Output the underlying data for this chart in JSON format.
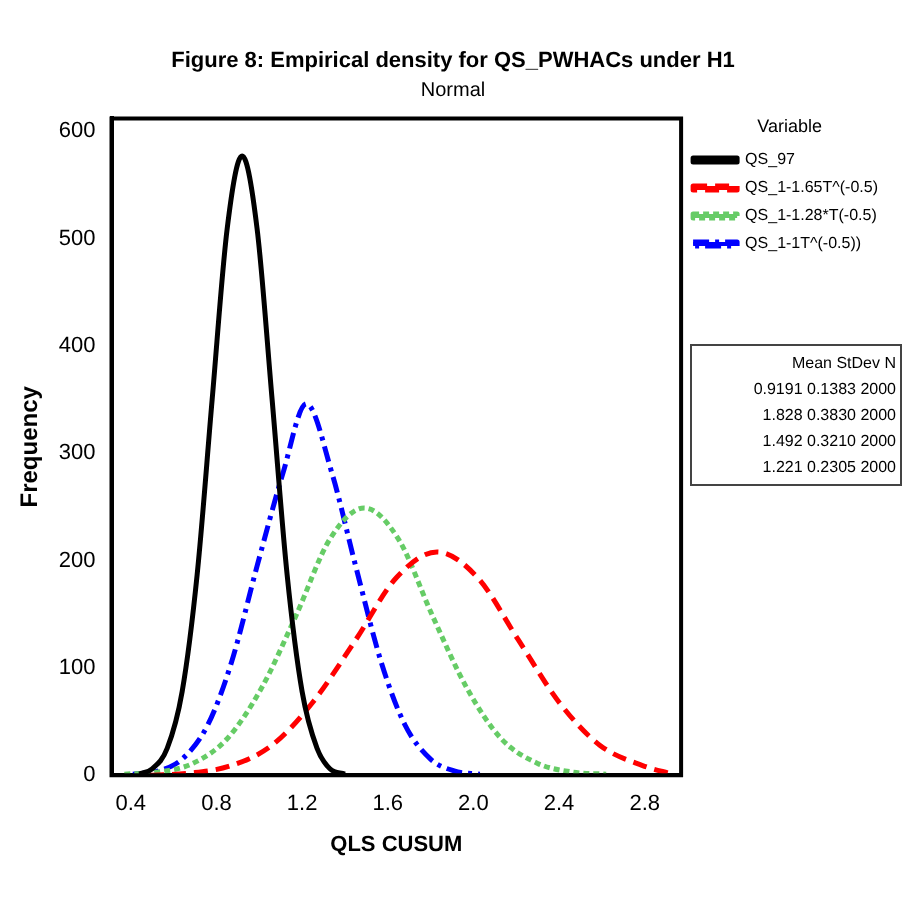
{
  "chart_data": {
    "type": "line",
    "title": "Figure 8: Empirical density for QS_PWHACs under H1",
    "subtitle": "Normal",
    "xlabel": "QLS CUSUM",
    "ylabel": "Frequency",
    "legend_title": "Variable",
    "legend": "right",
    "grid": false,
    "marker": "none",
    "xlim": [
      0.31,
      2.97
    ],
    "ylim": [
      0,
      612
    ],
    "xticks": [
      0.4,
      0.8,
      1.2,
      1.6,
      {
        "value": 2,
        "label": "2.0"
      },
      2.4,
      2.8
    ],
    "yticks": [
      0,
      100,
      200,
      300,
      400,
      500,
      600
    ],
    "series": [
      {
        "name": "QS_97",
        "color": "#000000",
        "line_style": "solid",
        "x": [
          0.44,
          0.5,
          0.57,
          0.64,
          0.71,
          0.78,
          0.85,
          0.92,
          0.99,
          1.06,
          1.13,
          1.2,
          1.27,
          1.33,
          1.4
        ],
        "values": [
          1,
          6,
          25,
          78,
          187,
          350,
          509,
          577,
          509,
          350,
          187,
          78,
          25,
          6,
          1
        ]
      },
      {
        "name": "QS_1-1.65T^(-0.5)",
        "color": "#ff0000",
        "line_style": "dashed",
        "x": [
          0.49,
          0.68,
          0.87,
          1.06,
          1.25,
          1.45,
          1.64,
          1.83,
          2.02,
          2.21,
          2.4,
          2.59,
          2.79,
          2.93
        ],
        "values": [
          0,
          2,
          9,
          28,
          68,
          126,
          184,
          208,
          184,
          126,
          68,
          28,
          9,
          1
        ]
      },
      {
        "name": "QS_1-1.28*T(-0.5)",
        "color": "#66cc66",
        "line_style": "dotted",
        "x": [
          0.37,
          0.53,
          0.69,
          0.85,
          1.01,
          1.17,
          1.33,
          1.49,
          1.65,
          1.81,
          1.97,
          2.13,
          2.3,
          2.46,
          2.62
        ],
        "values": [
          1,
          3,
          11,
          34,
          81,
          148,
          220,
          249,
          220,
          148,
          81,
          34,
          11,
          3,
          1
        ]
      },
      {
        "name": "QS_1-1T^(-0.5))",
        "color": "#0000ff",
        "line_style": "dashdot",
        "x": [
          0.41,
          0.53,
          0.64,
          0.76,
          0.87,
          0.99,
          1.11,
          1.22,
          1.34,
          1.45,
          1.57,
          1.68,
          1.8,
          1.91,
          2.03
        ],
        "values": [
          1,
          4,
          15,
          47,
          105,
          195,
          281,
          346,
          281,
          195,
          105,
          47,
          15,
          4,
          1
        ]
      }
    ],
    "annotations": [
      "Mean StDev N",
      "0.9191 0.1383 2000",
      "1.828 0.3830 2000",
      "1.492 0.3210 2000",
      "1.221 0.2305 2000"
    ]
  }
}
